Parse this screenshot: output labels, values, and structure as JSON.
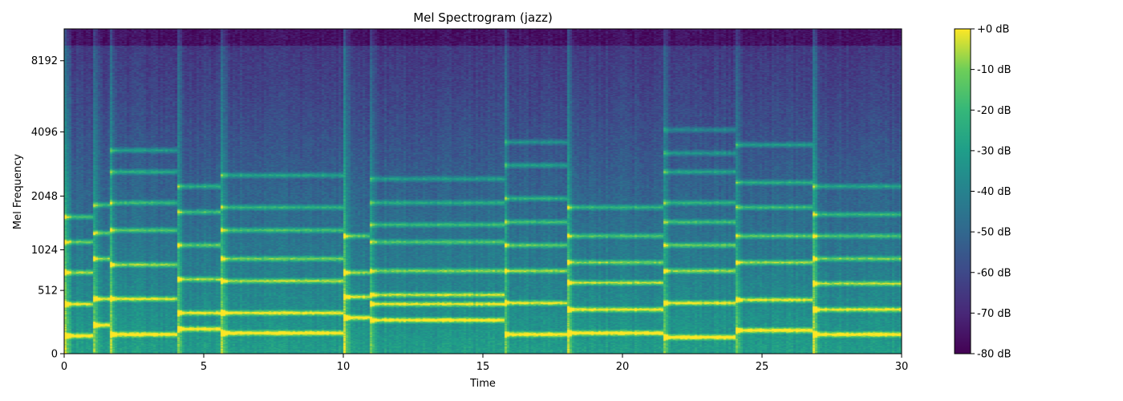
{
  "chart_data": {
    "type": "heatmap",
    "title": "Mel Spectrogram (jazz)",
    "xlabel": "Time",
    "ylabel": "Mel Frequency",
    "xlim": [
      0,
      30
    ],
    "x_ticks": [
      0,
      5,
      10,
      15,
      20,
      25,
      30
    ],
    "y_ticks": [
      0,
      512,
      1024,
      2048,
      4096,
      8192
    ],
    "y_tick_labels": [
      "0",
      "512",
      "1024",
      "2048",
      "4096",
      "8192"
    ],
    "y_scale": "mel",
    "colormap": "viridis",
    "colorbar": {
      "range": [
        -80,
        0
      ],
      "ticks": [
        0,
        -10,
        -20,
        -30,
        -40,
        -50,
        -60,
        -70,
        -80
      ],
      "tick_labels": [
        "+0 dB",
        "-10 dB",
        "-20 dB",
        "-30 dB",
        "-40 dB",
        "-50 dB",
        "-60 dB",
        "-70 dB",
        "-80 dB"
      ]
    },
    "grid": false,
    "notes_sections": [
      {
        "t0": 0.0,
        "t1": 1.0,
        "freqs": [
          120,
          380,
          720,
          1150,
          1600
        ]
      },
      {
        "t0": 1.0,
        "t1": 1.6,
        "freqs": [
          200,
          430,
          900,
          1300,
          1850
        ]
      },
      {
        "t0": 1.6,
        "t1": 4.0,
        "freqs": [
          130,
          430,
          820,
          1350,
          1900,
          2700,
          3400
        ]
      },
      {
        "t0": 4.0,
        "t1": 5.6,
        "freqs": [
          170,
          300,
          640,
          1100,
          1700,
          2300
        ]
      },
      {
        "t0": 5.6,
        "t1": 10.0,
        "freqs": [
          140,
          300,
          620,
          900,
          1350,
          1800,
          2600
        ]
      },
      {
        "t0": 10.0,
        "t1": 10.9,
        "freqs": [
          260,
          450,
          720,
          1250
        ]
      },
      {
        "t0": 10.9,
        "t1": 15.7,
        "freqs": [
          240,
          380,
          470,
          740,
          1150,
          1450,
          1900,
          2500
        ]
      },
      {
        "t0": 15.7,
        "t1": 18.0,
        "freqs": [
          130,
          390,
          740,
          1100,
          1500,
          2000,
          2900,
          3700
        ]
      },
      {
        "t0": 18.0,
        "t1": 21.4,
        "freqs": [
          140,
          330,
          600,
          850,
          1250,
          1800
        ]
      },
      {
        "t0": 21.4,
        "t1": 24.0,
        "freqs": [
          110,
          390,
          740,
          1100,
          1500,
          1900,
          2700,
          3300,
          4200
        ]
      },
      {
        "t0": 24.0,
        "t1": 26.8,
        "freqs": [
          160,
          420,
          850,
          1250,
          1800,
          2400,
          3600
        ]
      },
      {
        "t0": 26.8,
        "t1": 30.0,
        "freqs": [
          130,
          330,
          590,
          900,
          1250,
          1650,
          2300
        ]
      }
    ]
  }
}
